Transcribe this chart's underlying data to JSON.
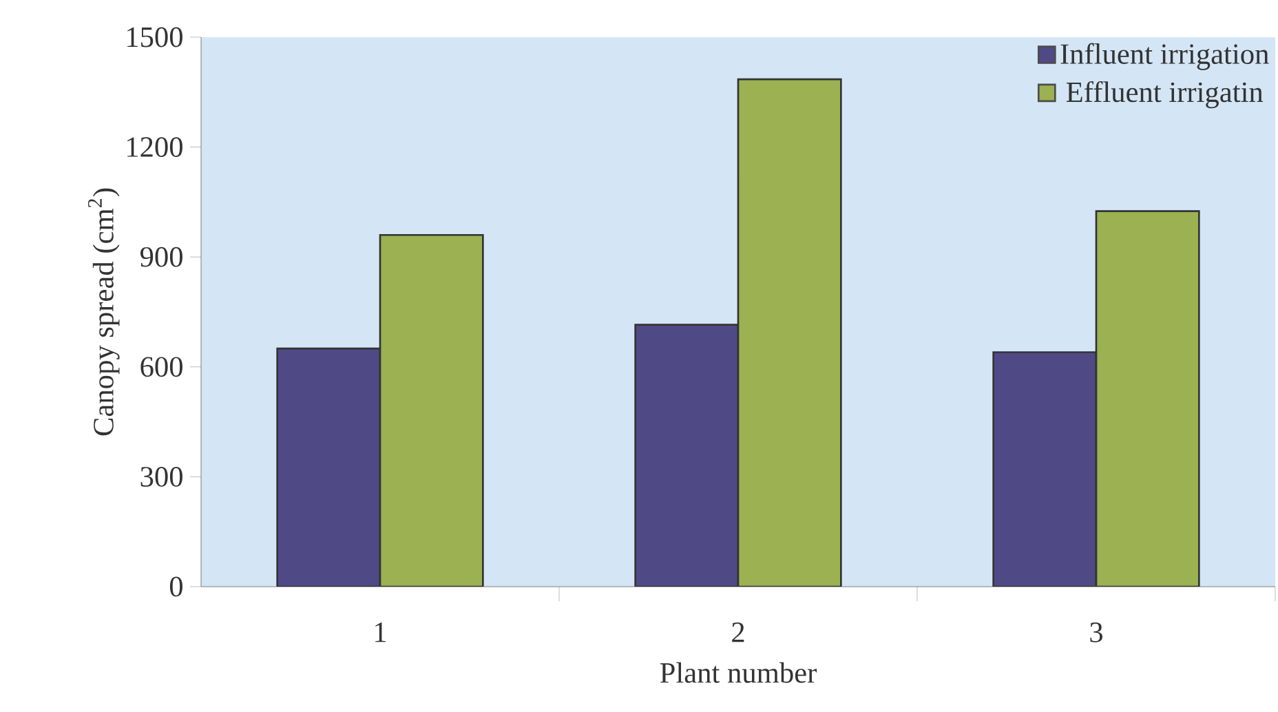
{
  "chart_data": {
    "type": "bar",
    "xlabel": "Plant number",
    "ylabel": "Canopy spread (cm$^{2}$)",
    "categories": [
      "1",
      "2",
      "3"
    ],
    "series": [
      {
        "name": "Influent irrigation",
        "color": "#4f4a86",
        "values": [
          650,
          715,
          640
        ]
      },
      {
        "name": "Effluent irrigatin",
        "color": "#9bb152",
        "values": [
          960,
          1385,
          1025
        ]
      }
    ],
    "ylim": [
      0,
      1500
    ],
    "yticks": [
      0,
      300,
      600,
      900,
      1200,
      1500
    ],
    "grid": false,
    "legend": "top right"
  }
}
